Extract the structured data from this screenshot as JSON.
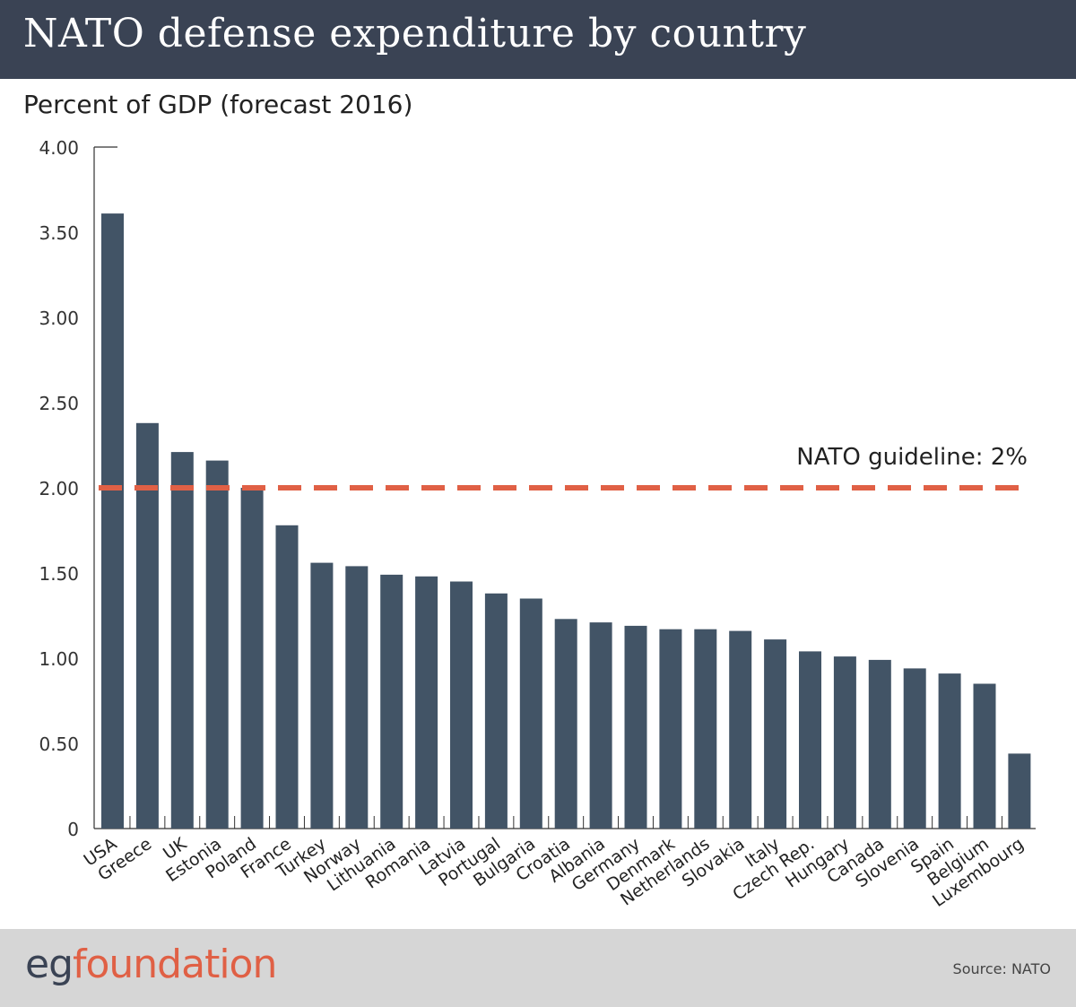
{
  "header": {
    "title": "NATO defense expenditure by country"
  },
  "chart_data": {
    "type": "bar",
    "title": "NATO defense expenditure by country",
    "ylabel": "Percent of GDP (forecast 2016)",
    "xlabel": "",
    "ylim": [
      0,
      4
    ],
    "yticks": [
      {
        "value": 0,
        "label": "0"
      },
      {
        "value": 0.5,
        "label": "0.50"
      },
      {
        "value": 1,
        "label": "1.00"
      },
      {
        "value": 1.5,
        "label": "1.50"
      },
      {
        "value": 2,
        "label": "2.00"
      },
      {
        "value": 2.5,
        "label": "2.50"
      },
      {
        "value": 3,
        "label": "3.00"
      },
      {
        "value": 3.5,
        "label": "3.50"
      },
      {
        "value": 4,
        "label": "4.00"
      }
    ],
    "categories": [
      "USA",
      "Greece",
      "UK",
      "Estonia",
      "Poland",
      "France",
      "Turkey",
      "Norway",
      "Lithuania",
      "Romania",
      "Latvia",
      "Portugal",
      "Bulgaria",
      "Croatia",
      "Albania",
      "Germany",
      "Denmark",
      "Netherlands",
      "Slovakia",
      "Italy",
      "Czech Rep.",
      "Hungary",
      "Canada",
      "Slovenia",
      "Spain",
      "Belgium",
      "Luxembourg"
    ],
    "values": [
      3.61,
      2.38,
      2.21,
      2.16,
      2.0,
      1.78,
      1.56,
      1.54,
      1.49,
      1.48,
      1.45,
      1.38,
      1.35,
      1.23,
      1.21,
      1.19,
      1.17,
      1.17,
      1.16,
      1.11,
      1.04,
      1.01,
      0.99,
      0.94,
      0.91,
      0.85,
      0.44
    ],
    "reference_line": {
      "value": 2.0,
      "label": "NATO guideline: 2%"
    },
    "colors": {
      "bar": "#425466",
      "guideline": "#e06045",
      "axis": "#333333"
    },
    "grid": false,
    "legend": "none"
  },
  "footer": {
    "logo_part1": "eg",
    "logo_part2": "foundation",
    "source": "Source: NATO"
  },
  "colors": {
    "header_bg": "#3a4354",
    "footer_bg": "#d6d6d6",
    "accent": "#e06045"
  }
}
